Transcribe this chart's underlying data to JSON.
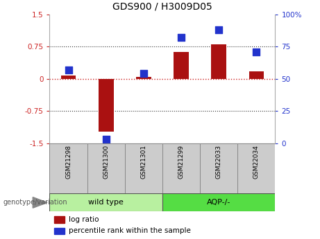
{
  "title": "GDS900 / H3009D05",
  "samples": [
    "GSM21298",
    "GSM21300",
    "GSM21301",
    "GSM21299",
    "GSM22033",
    "GSM22034"
  ],
  "log_ratio": [
    0.08,
    -1.22,
    0.05,
    0.62,
    0.8,
    0.18
  ],
  "percentile_rank": [
    57,
    3,
    54,
    82,
    88,
    71
  ],
  "groups": [
    {
      "label": "wild type",
      "indices": [
        0,
        1,
        2
      ],
      "color": "#b8f0a0"
    },
    {
      "label": "AQP-/-",
      "indices": [
        3,
        4,
        5
      ],
      "color": "#55dd44"
    }
  ],
  "ylim_left": [
    -1.5,
    1.5
  ],
  "ylim_right": [
    0,
    100
  ],
  "yticks_left": [
    -1.5,
    -0.75,
    0,
    0.75,
    1.5
  ],
  "ytick_labels_left": [
    "-1.5",
    "-0.75",
    "0",
    "0.75",
    "1.5"
  ],
  "yticks_right": [
    0,
    25,
    50,
    75,
    100
  ],
  "ytick_labels_right": [
    "0",
    "25",
    "50",
    "75",
    "100%"
  ],
  "hlines": [
    0.75,
    0.0,
    -0.75
  ],
  "bar_color": "#aa1111",
  "dot_color": "#2233cc",
  "zero_line_color": "#cc2222",
  "hline_color": "#333333",
  "bar_width": 0.4,
  "dot_size": 55,
  "sample_row_color": "#cccccc",
  "sample_row_border": "#888888",
  "genotype_label": "genotype/variation",
  "legend_items": [
    {
      "label": "log ratio",
      "color": "#aa1111"
    },
    {
      "label": "percentile rank within the sample",
      "color": "#2233cc"
    }
  ],
  "figsize": [
    4.61,
    3.45
  ],
  "dpi": 100
}
